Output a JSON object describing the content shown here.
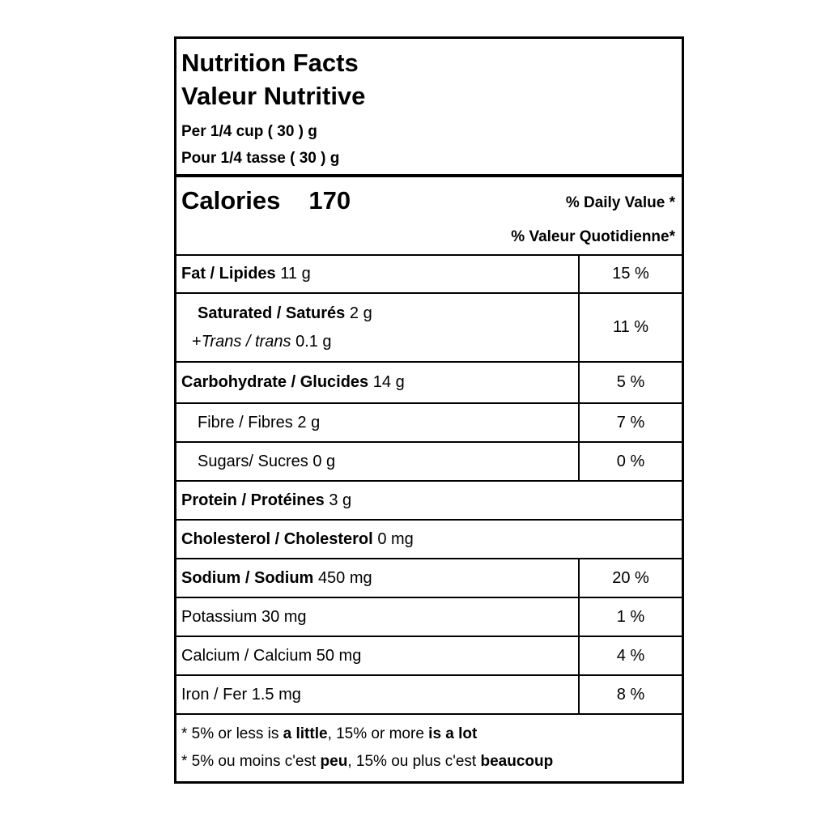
{
  "label": {
    "title_en": "Nutrition Facts",
    "title_fr": "Valeur Nutritive",
    "serving_en": "Per 1/4 cup ( 30 ) g",
    "serving_fr": "Pour 1/4 tasse ( 30 ) g",
    "calories": {
      "label": "Calories",
      "value": "170"
    },
    "dv_header_en": "% Daily Value *",
    "dv_header_fr": "% Valeur Quotidienne*",
    "rows": {
      "fat": {
        "name": "Fat / Lipides",
        "amount": "11 g",
        "dv": "15 %"
      },
      "saturated": {
        "name": "Saturated / Saturés",
        "amount": "2 g",
        "dv": "11 %"
      },
      "trans": {
        "prefix": "+",
        "name": "Trans / trans",
        "amount": "0.1 g"
      },
      "carbohydrate": {
        "name": "Carbohydrate / Glucides",
        "amount": "14 g",
        "dv": "5 %"
      },
      "fibre": {
        "name": "Fibre / Fibres",
        "amount": "2 g",
        "dv": "7 %"
      },
      "sugars": {
        "name": "Sugars/ Sucres",
        "amount": "0 g",
        "dv": "0 %"
      },
      "protein": {
        "name": "Protein / Protéines",
        "amount": "3 g"
      },
      "cholesterol": {
        "name": "Cholesterol / Cholesterol",
        "amount": "0 mg"
      },
      "sodium": {
        "name": "Sodium / Sodium",
        "amount": "450 mg",
        "dv": "20 %"
      },
      "potassium": {
        "name": "Potassium",
        "amount": "30 mg",
        "dv": "1 %"
      },
      "calcium": {
        "name": "Calcium / Calcium",
        "amount": "50 mg",
        "dv": "4 %"
      },
      "iron": {
        "name": "Iron / Fer",
        "amount": "1.5 mg",
        "dv": "8 %"
      }
    },
    "footnote_en": {
      "pre": "* 5% or less is ",
      "bold1": "a little",
      "mid": ", 15% or more ",
      "bold2": "is a lot"
    },
    "footnote_fr": {
      "pre": "* 5% ou moins c'est ",
      "bold1": "peu",
      "mid": ", 15% ou plus c'est ",
      "bold2": "beaucoup"
    }
  },
  "colors": {
    "text": "#000000",
    "border": "#000000",
    "background": "#ffffff"
  }
}
